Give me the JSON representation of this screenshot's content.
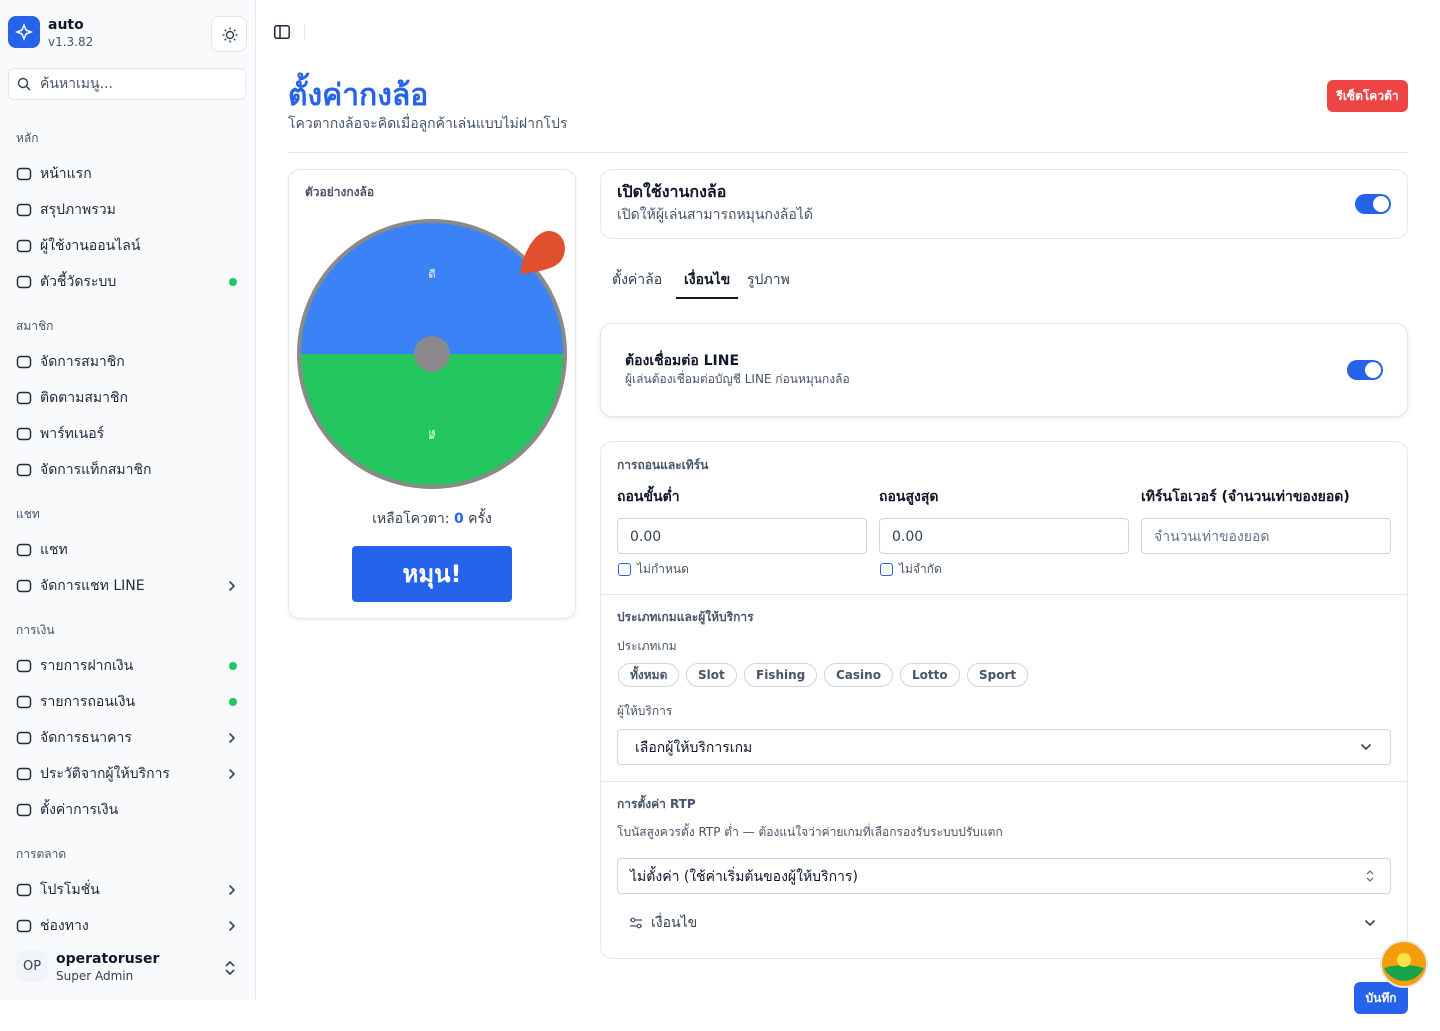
{
  "sidebar": {
    "app_name": "auto",
    "version": "v1.3.82",
    "search_placeholder": "ค้นหาเมนู...",
    "groups": [
      {
        "label": "หลัก",
        "items": [
          {
            "label": "หน้าแรก",
            "badge": false,
            "submenu": false
          },
          {
            "label": "สรุปภาพรวม",
            "badge": false,
            "submenu": false
          },
          {
            "label": "ผู้ใช้งานออนไลน์",
            "badge": false,
            "submenu": false
          },
          {
            "label": "ตัวชี้วัดระบบ",
            "badge": true,
            "submenu": false
          }
        ]
      },
      {
        "label": "สมาชิก",
        "items": [
          {
            "label": "จัดการสมาชิก",
            "badge": false,
            "submenu": false
          },
          {
            "label": "ติดตามสมาชิก",
            "badge": false,
            "submenu": false
          },
          {
            "label": "พาร์ทเนอร์",
            "badge": false,
            "submenu": false
          },
          {
            "label": "จัดการแท็กสมาชิก",
            "badge": false,
            "submenu": false
          }
        ]
      },
      {
        "label": "แชท",
        "items": [
          {
            "label": "แชท",
            "badge": false,
            "submenu": false
          },
          {
            "label": "จัดการแชท LINE",
            "badge": false,
            "submenu": true
          }
        ]
      },
      {
        "label": "การเงิน",
        "items": [
          {
            "label": "รายการฝากเงิน",
            "badge": true,
            "submenu": false
          },
          {
            "label": "รายการถอนเงิน",
            "badge": true,
            "submenu": false
          },
          {
            "label": "จัดการธนาคาร",
            "badge": false,
            "submenu": true
          },
          {
            "label": "ประวัติจากผู้ให้บริการ",
            "badge": false,
            "submenu": true
          },
          {
            "label": "ตั้งค่าการเงิน",
            "badge": false,
            "submenu": false
          }
        ]
      },
      {
        "label": "การตลาด",
        "items": [
          {
            "label": "โปรโมชั่น",
            "badge": false,
            "submenu": true
          },
          {
            "label": "ช่องทาง",
            "badge": false,
            "submenu": true
          }
        ]
      }
    ],
    "user": {
      "initials": "OP",
      "name": "operatoruser",
      "role": "Super Admin"
    }
  },
  "header": {
    "title": "ตั้งค่ากงล้อ",
    "subtitle": "โควตากงล้อจะคิดเมื่อลูกค้าเล่นแบบไม่ฝากโปร",
    "reset_button": "รีเซ็ตโควต้า"
  },
  "preview": {
    "label": "ตัวอย่างกงล้อ",
    "segments": [
      {
        "label": "ดี",
        "color": "#3b82f6"
      },
      {
        "label": "ดี",
        "color": "#22c55e"
      }
    ],
    "remaining_label": "เหลือโควตา:",
    "remaining_value": 0,
    "remaining_unit": "ครั้ง",
    "spin_button": "หมุน!"
  },
  "enable_card": {
    "title": "เปิดใช้งานกงล้อ",
    "description": "เปิดให้ผู้เล่นสามารถหมุนกงล้อได้",
    "enabled": true
  },
  "tabs": {
    "items": [
      "ตั้งค่าล้อ",
      "เงื่อนไข",
      "รูปภาพ"
    ],
    "active": 1
  },
  "line_card": {
    "title": "ต้องเชื่อมต่อ LINE",
    "description": "ผู้เล่นต้องเชื่อมต่อบัญชี LINE ก่อนหมุนกงล้อ",
    "enabled": true
  },
  "withdraw": {
    "title": "การถอนและเทิร์น",
    "fields": [
      {
        "label": "ถอนขั้นต่ำ",
        "value": "0.00",
        "checkbox": "ไม่กำหนด"
      },
      {
        "label": "ถอนสูงสุด",
        "value": "0.00",
        "checkbox": "ไม่จำกัด"
      },
      {
        "label": "เทิร์นโอเวอร์ (จำนวนเท่าของยอด)",
        "placeholder": "จำนวนเท่าของยอด"
      }
    ]
  },
  "game": {
    "title": "ประเภทเกมและผู้ให้บริการ",
    "types_label": "ประเภทเกม",
    "types": [
      "ทั้งหมด",
      "Slot",
      "Fishing",
      "Casino",
      "Lotto",
      "Sport"
    ],
    "provider_label": "ผู้ให้บริการ",
    "provider_placeholder": "เลือกผู้ให้บริการเกม"
  },
  "rtp": {
    "title": "การตั้งค่า RTP",
    "description": "โบนัสสูงควรตั้ง RTP ต่ำ — ต้องแน่ใจว่าค่ายเกมที่เลือกรองรับระบบปรับแตก",
    "select": "ไม่ตั้งค่า (ใช้ค่าเริ่มต้นของผู้ให้บริการ)",
    "conditions": "เงื่อนไข"
  },
  "save_button": "บันทึก"
}
